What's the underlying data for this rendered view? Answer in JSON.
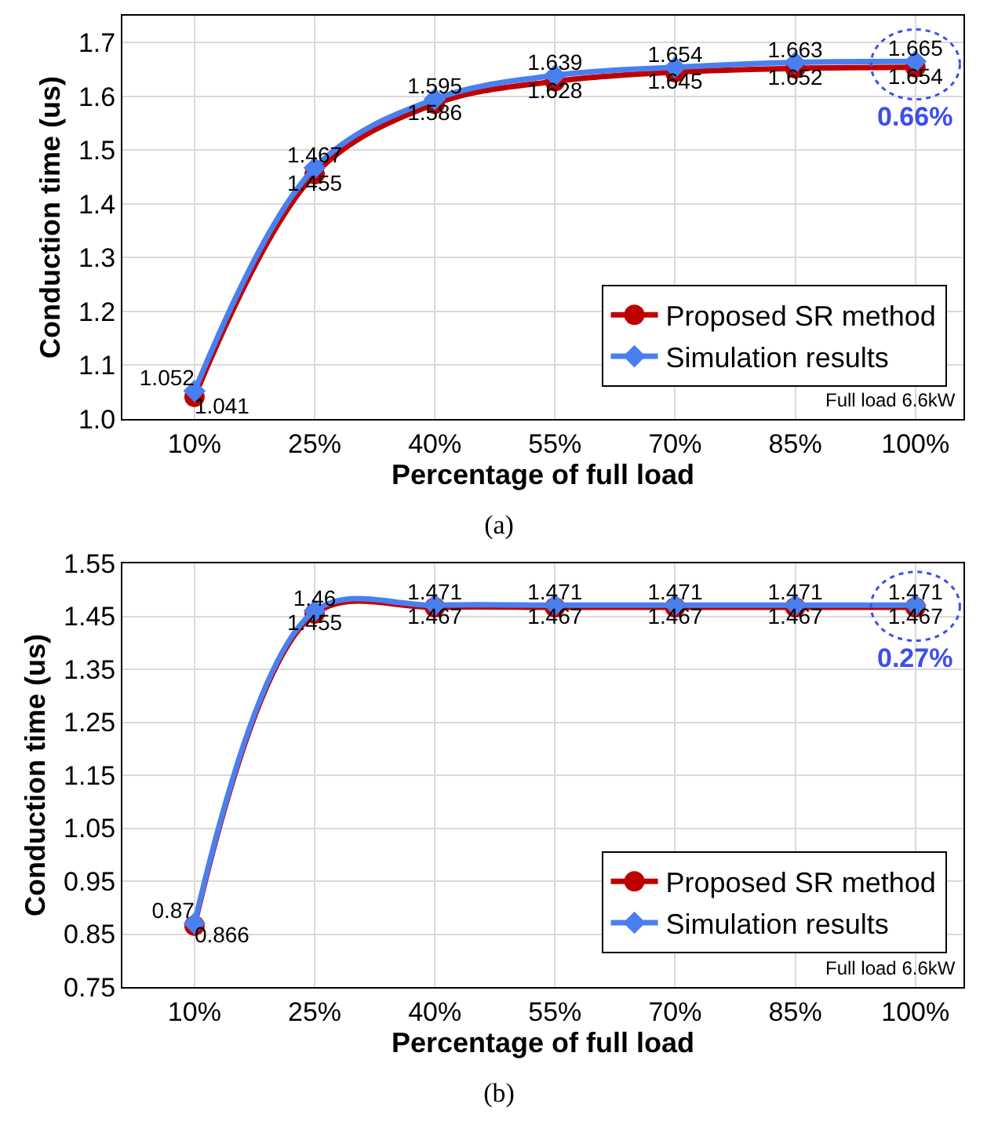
{
  "chart_data": [
    {
      "type": "line",
      "xlabel": "Percentage of full load",
      "ylabel": "Conduction time (us)",
      "categories": [
        "10%",
        "25%",
        "40%",
        "55%",
        "70%",
        "85%",
        "100%"
      ],
      "series": [
        {
          "name": "Proposed SR method",
          "color": "#c00000",
          "marker": "circle",
          "values": [
            1.041,
            1.455,
            1.586,
            1.628,
            1.645,
            1.652,
            1.654
          ]
        },
        {
          "name": "Simulation results",
          "color": "#4a7ff0",
          "marker": "diamond",
          "values": [
            1.052,
            1.467,
            1.595,
            1.639,
            1.654,
            1.663,
            1.665
          ]
        }
      ],
      "ylim": [
        1.0,
        1.75
      ],
      "yticks": [
        {
          "value": 1.0,
          "label": "1.0"
        },
        1.1,
        1.2,
        1.3,
        1.4,
        1.5,
        1.6,
        1.7
      ],
      "grid": true,
      "legend": "bottom right",
      "data_labels": true,
      "annotations": [
        "Full load 6.6kW",
        "0.66%",
        "(a)"
      ]
    },
    {
      "type": "line",
      "xlabel": "Percentage of full load",
      "ylabel": "Conduction time (us)",
      "categories": [
        "10%",
        "25%",
        "40%",
        "55%",
        "70%",
        "85%",
        "100%"
      ],
      "series": [
        {
          "name": "Proposed SR method",
          "color": "#c00000",
          "marker": "circle",
          "values": [
            0.866,
            1.455,
            1.467,
            1.467,
            1.467,
            1.467,
            1.467
          ]
        },
        {
          "name": "Simulation results",
          "color": "#4a7ff0",
          "marker": "diamond",
          "values": [
            0.87,
            1.46,
            1.471,
            1.471,
            1.471,
            1.471,
            1.471
          ]
        }
      ],
      "ylim": [
        0.75,
        1.55
      ],
      "yticks": [
        0.75,
        0.85,
        0.95,
        1.05,
        1.15,
        1.25,
        1.35,
        1.45,
        1.55
      ],
      "grid": true,
      "legend": "bottom right",
      "data_labels": true,
      "annotations": [
        "Full load 6.6kW",
        "0.27%",
        "(b)"
      ]
    }
  ]
}
